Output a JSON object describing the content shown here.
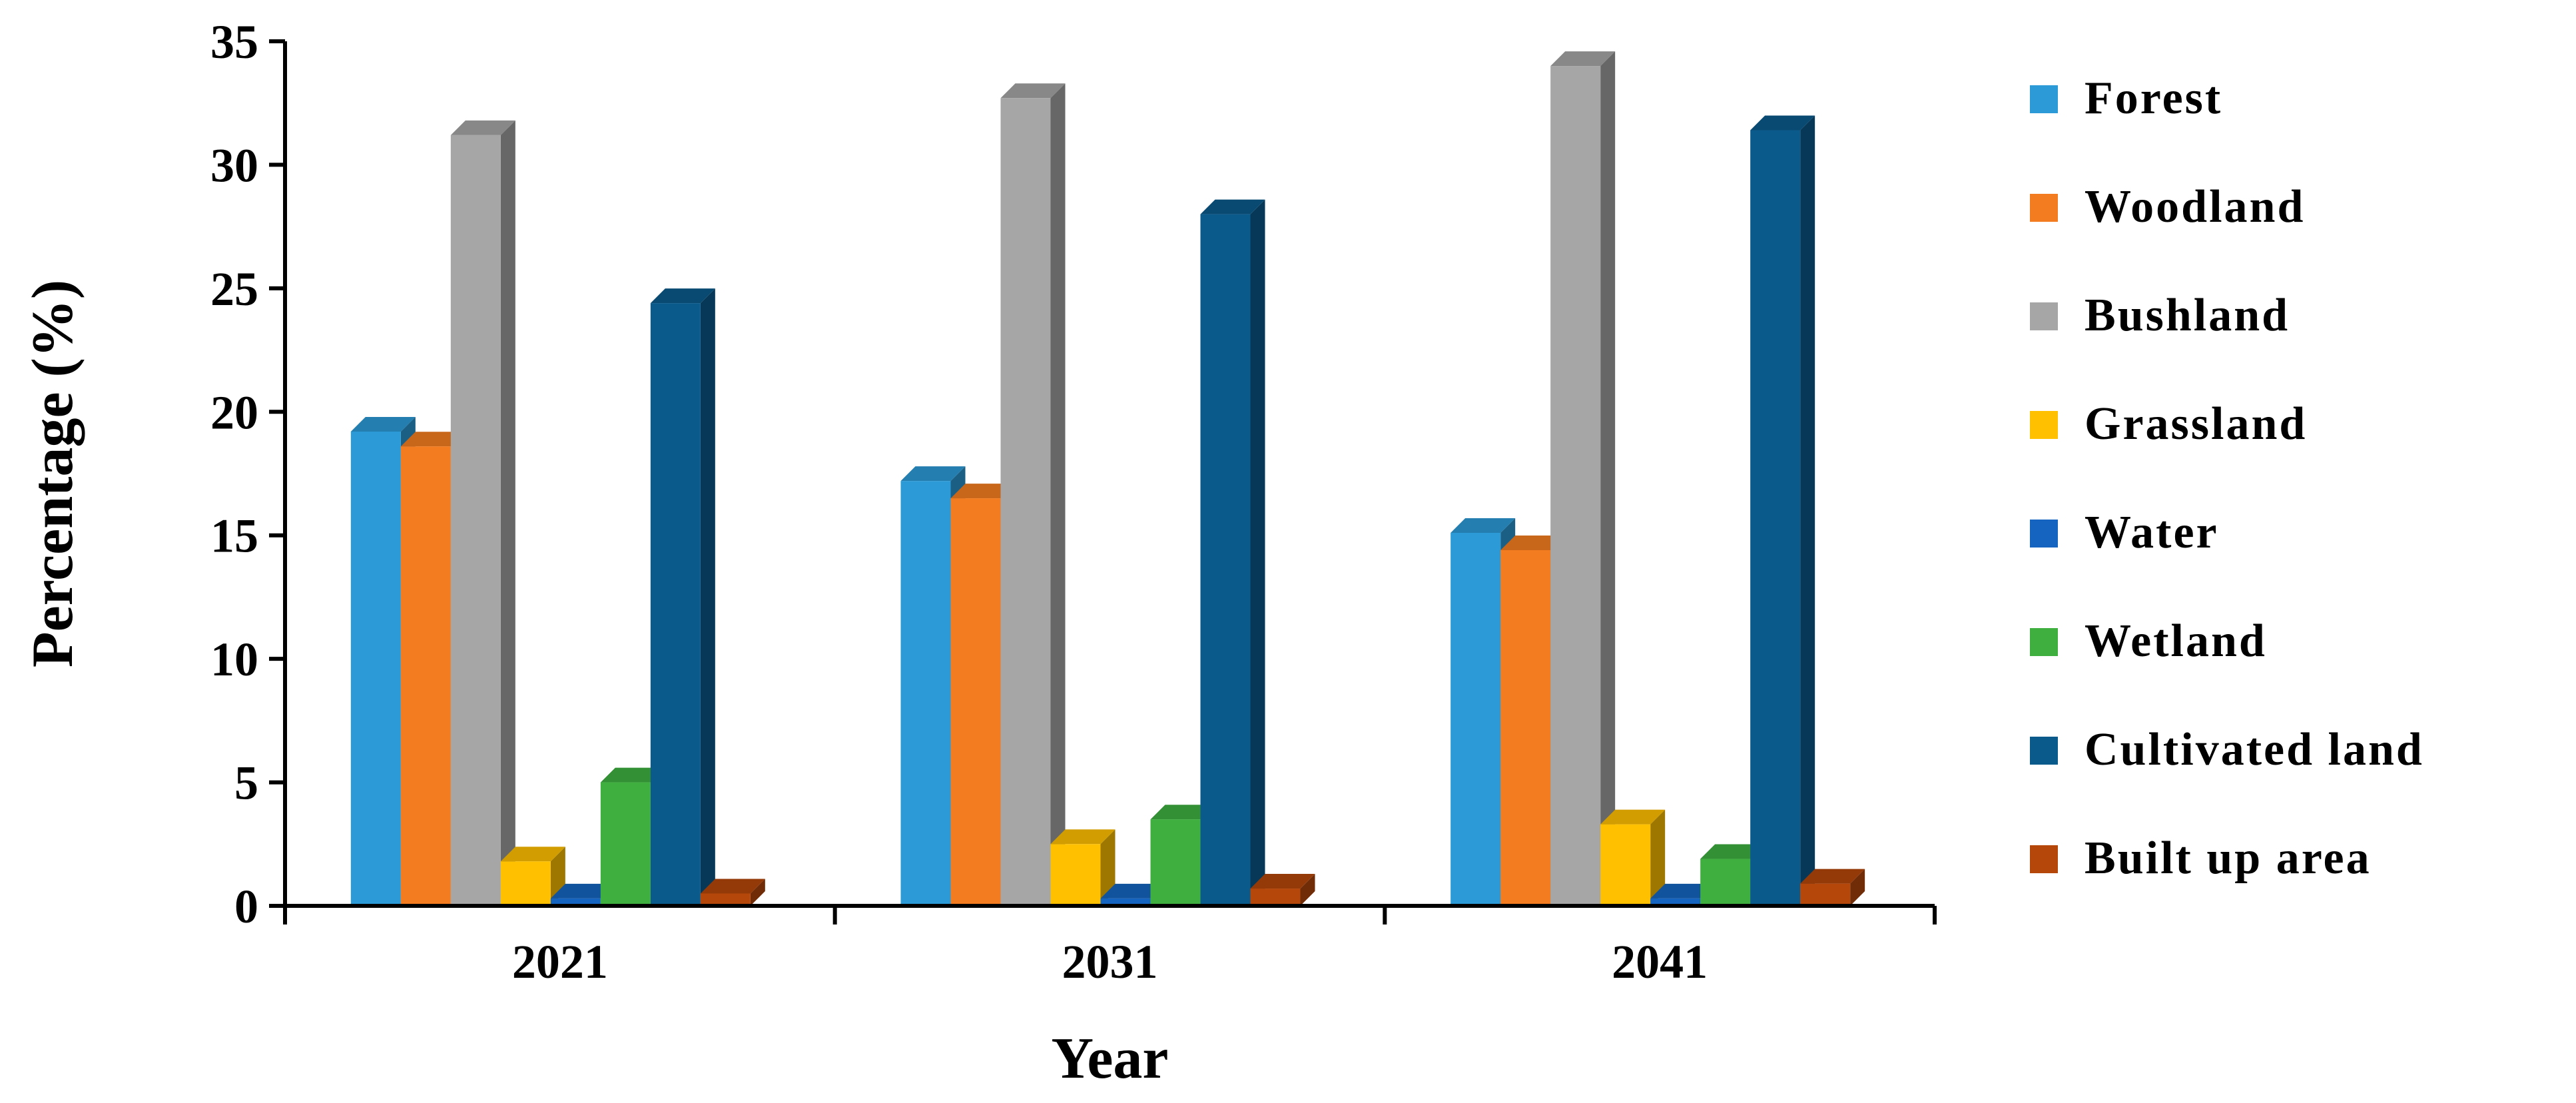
{
  "chart_data": {
    "type": "bar",
    "categories": [
      "2021",
      "2031",
      "2041"
    ],
    "xlabel": "Year",
    "ylabel": "Percentage (%)",
    "ylim": [
      0,
      35
    ],
    "yticks": [
      0,
      5,
      10,
      15,
      20,
      25,
      30,
      35
    ],
    "grid": false,
    "legend_position": "right",
    "series": [
      {
        "name": "Forest",
        "color": "#2C9AD6",
        "values": [
          19.2,
          17.2,
          15.1
        ]
      },
      {
        "name": "Woodland",
        "color": "#F47C20",
        "values": [
          18.6,
          16.5,
          14.4
        ]
      },
      {
        "name": "Bushland",
        "color": "#A6A6A6",
        "values": [
          31.2,
          32.7,
          34.0
        ]
      },
      {
        "name": "Grassland",
        "color": "#FFC000",
        "values": [
          1.8,
          2.5,
          3.3
        ]
      },
      {
        "name": "Water",
        "color": "#1565C0",
        "values": [
          0.3,
          0.3,
          0.3
        ]
      },
      {
        "name": "Wetland",
        "color": "#3FAF3F",
        "values": [
          5.0,
          3.5,
          1.9
        ]
      },
      {
        "name": "Cultivated land",
        "color": "#0B5A8C",
        "values": [
          24.4,
          28.0,
          31.4
        ]
      },
      {
        "name": "Built up area",
        "color": "#B5470B",
        "values": [
          0.5,
          0.7,
          0.9
        ]
      }
    ]
  }
}
